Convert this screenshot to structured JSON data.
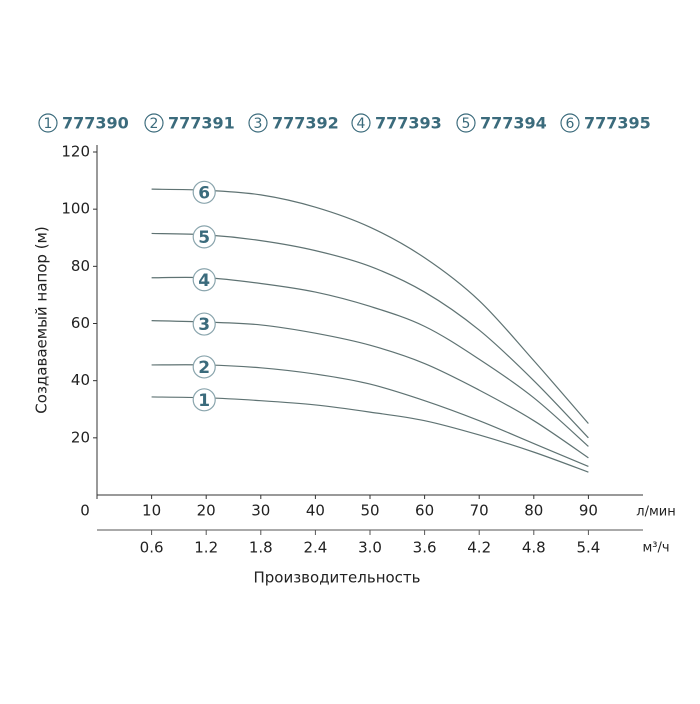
{
  "chart_data": {
    "type": "line",
    "y_label": "Создаваемый напор (м)",
    "x_label": "Производительность",
    "x_unit": "л/мин",
    "x2_unit": "м³/ч",
    "xlim": [
      0,
      100
    ],
    "xticks": [
      0,
      10,
      20,
      30,
      40,
      50,
      60,
      70,
      80,
      90
    ],
    "x2lim": [
      0,
      6
    ],
    "x2ticks": [
      0.6,
      1.2,
      1.8,
      2.4,
      {
        "value": 3,
        "label": "3.0"
      },
      3.6,
      4.2,
      4.8,
      5.4
    ],
    "ylim": [
      0,
      120
    ],
    "yticks": [
      20,
      40,
      60,
      80,
      100,
      120
    ],
    "x": [
      10,
      20,
      30,
      40,
      50,
      60,
      70,
      80,
      90
    ],
    "series": [
      {
        "name": "777390",
        "label": "1",
        "color": "#5f7373",
        "values": [
          34.3,
          34,
          33,
          31.5,
          29,
          26,
          21,
          15,
          8
        ]
      },
      {
        "name": "777391",
        "label": "2",
        "color": "#5f7373",
        "values": [
          45.5,
          45.5,
          44.5,
          42.3,
          38.8,
          33,
          26,
          18,
          10
        ]
      },
      {
        "name": "777392",
        "label": "3",
        "color": "#5f7373",
        "values": [
          61,
          60.5,
          59.5,
          56.6,
          52.4,
          46,
          36.7,
          26,
          13
        ]
      },
      {
        "name": "777393",
        "label": "4",
        "color": "#5f7373",
        "values": [
          76,
          76,
          74,
          71,
          66,
          59,
          47.5,
          34,
          17
        ]
      },
      {
        "name": "777394",
        "label": "5",
        "color": "#5f7373",
        "values": [
          91.5,
          91,
          89,
          85.5,
          80,
          71,
          57.7,
          40,
          20
        ]
      },
      {
        "name": "777395",
        "label": "6",
        "color": "#5f7373",
        "values": [
          107,
          106.6,
          105,
          100.7,
          93.7,
          83,
          68,
          47,
          25
        ]
      }
    ]
  }
}
